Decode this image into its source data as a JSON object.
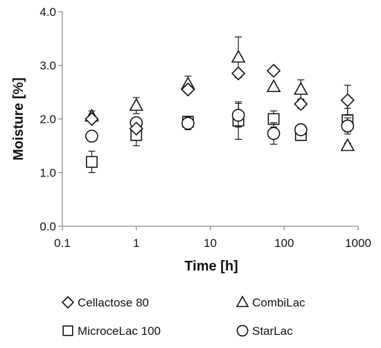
{
  "chart_data": {
    "type": "scatter",
    "title": "",
    "xlabel": "Time [h]",
    "ylabel": "Moisture [%]",
    "xscale": "log",
    "xlim": [
      0.1,
      1000
    ],
    "ylim": [
      0.0,
      4.0
    ],
    "xticks": [
      0.1,
      1,
      10,
      100,
      1000
    ],
    "xtick_labels": [
      "0.1",
      "1",
      "10",
      "100",
      "1000"
    ],
    "yticks": [
      0.0,
      1.0,
      2.0,
      3.0,
      4.0
    ],
    "ytick_labels": [
      "0.0",
      "1.0",
      "2.0",
      "3.0",
      "4.0"
    ],
    "grid": false,
    "legend_position": "bottom",
    "error_bars": true,
    "series": [
      {
        "name": "Cellactose 80",
        "marker": "diamond",
        "color": "#111111",
        "x": [
          0.25,
          1,
          5,
          24,
          72,
          168,
          720
        ],
        "y": [
          2.0,
          1.82,
          2.55,
          2.85,
          2.9,
          2.28,
          2.35
        ],
        "err": [
          0.05,
          0.06,
          0.07,
          0.04,
          0.03,
          0.08,
          0.28
        ]
      },
      {
        "name": "CombiLac",
        "marker": "triangle",
        "color": "#111111",
        "x": [
          0.25,
          1,
          5,
          24,
          72,
          168,
          720
        ],
        "y": [
          2.05,
          2.25,
          2.65,
          3.15,
          2.6,
          2.55,
          1.5
        ],
        "err": [
          0.1,
          0.15,
          0.15,
          0.38,
          0.0,
          0.18,
          0.05
        ]
      },
      {
        "name": "MicroceLac 100",
        "marker": "square",
        "color": "#111111",
        "x": [
          0.25,
          1,
          5,
          24,
          72,
          168,
          720
        ],
        "y": [
          1.2,
          1.7,
          1.95,
          1.97,
          2.0,
          1.7,
          1.98
        ],
        "err": [
          0.2,
          0.2,
          0.1,
          0.35,
          0.15,
          0.1,
          0.22
        ]
      },
      {
        "name": "StarLac",
        "marker": "circle",
        "color": "#111111",
        "x": [
          0.25,
          1,
          5,
          24,
          72,
          168,
          720
        ],
        "y": [
          1.68,
          1.93,
          1.92,
          2.07,
          1.73,
          1.8,
          1.87
        ],
        "err": [
          0.0,
          0.05,
          0.12,
          0.22,
          0.2,
          0.07,
          0.15
        ]
      }
    ]
  }
}
